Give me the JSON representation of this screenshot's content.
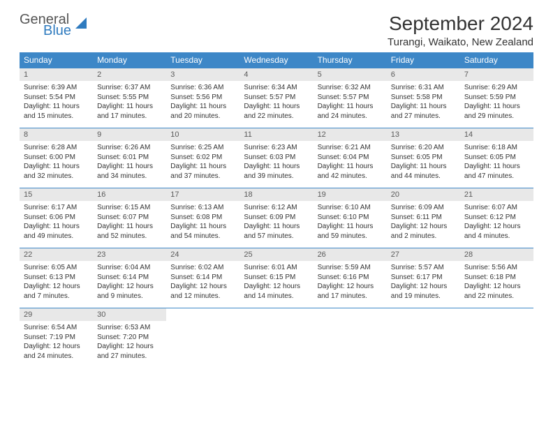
{
  "logo": {
    "general": "General",
    "blue": "Blue"
  },
  "header": {
    "month_title": "September 2024",
    "location": "Turangi, Waikato, New Zealand"
  },
  "style": {
    "header_bg": "#3d87c7",
    "header_fg": "#ffffff",
    "daynum_bg": "#e8e8e8",
    "border_color": "#3d87c7",
    "text_color": "#333333",
    "logo_blue": "#2f7bbf"
  },
  "columns": [
    "Sunday",
    "Monday",
    "Tuesday",
    "Wednesday",
    "Thursday",
    "Friday",
    "Saturday"
  ],
  "weeks": [
    [
      {
        "n": "1",
        "sr": "Sunrise: 6:39 AM",
        "ss": "Sunset: 5:54 PM",
        "d1": "Daylight: 11 hours",
        "d2": "and 15 minutes."
      },
      {
        "n": "2",
        "sr": "Sunrise: 6:37 AM",
        "ss": "Sunset: 5:55 PM",
        "d1": "Daylight: 11 hours",
        "d2": "and 17 minutes."
      },
      {
        "n": "3",
        "sr": "Sunrise: 6:36 AM",
        "ss": "Sunset: 5:56 PM",
        "d1": "Daylight: 11 hours",
        "d2": "and 20 minutes."
      },
      {
        "n": "4",
        "sr": "Sunrise: 6:34 AM",
        "ss": "Sunset: 5:57 PM",
        "d1": "Daylight: 11 hours",
        "d2": "and 22 minutes."
      },
      {
        "n": "5",
        "sr": "Sunrise: 6:32 AM",
        "ss": "Sunset: 5:57 PM",
        "d1": "Daylight: 11 hours",
        "d2": "and 24 minutes."
      },
      {
        "n": "6",
        "sr": "Sunrise: 6:31 AM",
        "ss": "Sunset: 5:58 PM",
        "d1": "Daylight: 11 hours",
        "d2": "and 27 minutes."
      },
      {
        "n": "7",
        "sr": "Sunrise: 6:29 AM",
        "ss": "Sunset: 5:59 PM",
        "d1": "Daylight: 11 hours",
        "d2": "and 29 minutes."
      }
    ],
    [
      {
        "n": "8",
        "sr": "Sunrise: 6:28 AM",
        "ss": "Sunset: 6:00 PM",
        "d1": "Daylight: 11 hours",
        "d2": "and 32 minutes."
      },
      {
        "n": "9",
        "sr": "Sunrise: 6:26 AM",
        "ss": "Sunset: 6:01 PM",
        "d1": "Daylight: 11 hours",
        "d2": "and 34 minutes."
      },
      {
        "n": "10",
        "sr": "Sunrise: 6:25 AM",
        "ss": "Sunset: 6:02 PM",
        "d1": "Daylight: 11 hours",
        "d2": "and 37 minutes."
      },
      {
        "n": "11",
        "sr": "Sunrise: 6:23 AM",
        "ss": "Sunset: 6:03 PM",
        "d1": "Daylight: 11 hours",
        "d2": "and 39 minutes."
      },
      {
        "n": "12",
        "sr": "Sunrise: 6:21 AM",
        "ss": "Sunset: 6:04 PM",
        "d1": "Daylight: 11 hours",
        "d2": "and 42 minutes."
      },
      {
        "n": "13",
        "sr": "Sunrise: 6:20 AM",
        "ss": "Sunset: 6:05 PM",
        "d1": "Daylight: 11 hours",
        "d2": "and 44 minutes."
      },
      {
        "n": "14",
        "sr": "Sunrise: 6:18 AM",
        "ss": "Sunset: 6:05 PM",
        "d1": "Daylight: 11 hours",
        "d2": "and 47 minutes."
      }
    ],
    [
      {
        "n": "15",
        "sr": "Sunrise: 6:17 AM",
        "ss": "Sunset: 6:06 PM",
        "d1": "Daylight: 11 hours",
        "d2": "and 49 minutes."
      },
      {
        "n": "16",
        "sr": "Sunrise: 6:15 AM",
        "ss": "Sunset: 6:07 PM",
        "d1": "Daylight: 11 hours",
        "d2": "and 52 minutes."
      },
      {
        "n": "17",
        "sr": "Sunrise: 6:13 AM",
        "ss": "Sunset: 6:08 PM",
        "d1": "Daylight: 11 hours",
        "d2": "and 54 minutes."
      },
      {
        "n": "18",
        "sr": "Sunrise: 6:12 AM",
        "ss": "Sunset: 6:09 PM",
        "d1": "Daylight: 11 hours",
        "d2": "and 57 minutes."
      },
      {
        "n": "19",
        "sr": "Sunrise: 6:10 AM",
        "ss": "Sunset: 6:10 PM",
        "d1": "Daylight: 11 hours",
        "d2": "and 59 minutes."
      },
      {
        "n": "20",
        "sr": "Sunrise: 6:09 AM",
        "ss": "Sunset: 6:11 PM",
        "d1": "Daylight: 12 hours",
        "d2": "and 2 minutes."
      },
      {
        "n": "21",
        "sr": "Sunrise: 6:07 AM",
        "ss": "Sunset: 6:12 PM",
        "d1": "Daylight: 12 hours",
        "d2": "and 4 minutes."
      }
    ],
    [
      {
        "n": "22",
        "sr": "Sunrise: 6:05 AM",
        "ss": "Sunset: 6:13 PM",
        "d1": "Daylight: 12 hours",
        "d2": "and 7 minutes."
      },
      {
        "n": "23",
        "sr": "Sunrise: 6:04 AM",
        "ss": "Sunset: 6:14 PM",
        "d1": "Daylight: 12 hours",
        "d2": "and 9 minutes."
      },
      {
        "n": "24",
        "sr": "Sunrise: 6:02 AM",
        "ss": "Sunset: 6:14 PM",
        "d1": "Daylight: 12 hours",
        "d2": "and 12 minutes."
      },
      {
        "n": "25",
        "sr": "Sunrise: 6:01 AM",
        "ss": "Sunset: 6:15 PM",
        "d1": "Daylight: 12 hours",
        "d2": "and 14 minutes."
      },
      {
        "n": "26",
        "sr": "Sunrise: 5:59 AM",
        "ss": "Sunset: 6:16 PM",
        "d1": "Daylight: 12 hours",
        "d2": "and 17 minutes."
      },
      {
        "n": "27",
        "sr": "Sunrise: 5:57 AM",
        "ss": "Sunset: 6:17 PM",
        "d1": "Daylight: 12 hours",
        "d2": "and 19 minutes."
      },
      {
        "n": "28",
        "sr": "Sunrise: 5:56 AM",
        "ss": "Sunset: 6:18 PM",
        "d1": "Daylight: 12 hours",
        "d2": "and 22 minutes."
      }
    ],
    [
      {
        "n": "29",
        "sr": "Sunrise: 6:54 AM",
        "ss": "Sunset: 7:19 PM",
        "d1": "Daylight: 12 hours",
        "d2": "and 24 minutes."
      },
      {
        "n": "30",
        "sr": "Sunrise: 6:53 AM",
        "ss": "Sunset: 7:20 PM",
        "d1": "Daylight: 12 hours",
        "d2": "and 27 minutes."
      },
      null,
      null,
      null,
      null,
      null
    ]
  ]
}
